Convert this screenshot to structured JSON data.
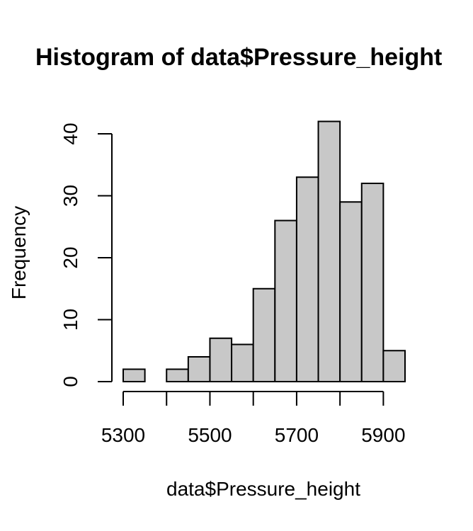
{
  "chart_data": {
    "type": "bar",
    "title": "Histogram of data$Pressure_height",
    "xlabel": "data$Pressure_height",
    "ylabel": "Frequency",
    "bin_edges": [
      5300,
      5350,
      5400,
      5450,
      5500,
      5550,
      5600,
      5650,
      5700,
      5750,
      5800,
      5850,
      5900,
      5950
    ],
    "values": [
      2,
      0,
      2,
      4,
      7,
      6,
      15,
      26,
      33,
      42,
      29,
      32,
      5
    ],
    "xlim": [
      5300,
      5950
    ],
    "ylim": [
      0,
      42
    ],
    "x_ticks": [
      5300,
      5500,
      5700,
      5900
    ],
    "x_tick_labels": [
      "5300",
      "5500",
      "5700",
      "5900"
    ],
    "x_minor_ticks": [
      5300,
      5400,
      5500,
      5600,
      5700,
      5800,
      5900
    ],
    "y_ticks": [
      0,
      10,
      20,
      30,
      40
    ],
    "y_tick_labels": [
      "0",
      "10",
      "20",
      "30",
      "40"
    ],
    "bar_color": "#c8c8c8",
    "edge_color": "#000000",
    "grid": false,
    "legend": "none"
  }
}
